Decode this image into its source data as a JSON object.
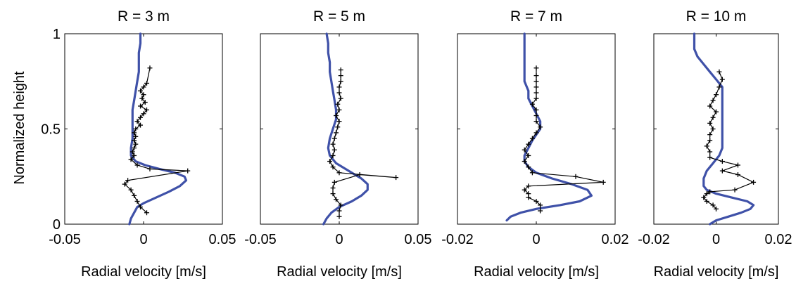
{
  "chart_data": [
    {
      "type": "line",
      "title": "R = 3 m",
      "xlabel": "Radial velocity [m/s]",
      "ylabel": "Normalized height",
      "xlim": [
        -0.05,
        0.05
      ],
      "ylim": [
        0,
        1
      ],
      "xticks": [
        -0.05,
        0,
        0.05
      ],
      "xticklabels": [
        "-0.05",
        "0",
        "0.05"
      ],
      "yticks": [
        0,
        0.5,
        1
      ],
      "yticklabels": [
        "0",
        "0.5",
        "1"
      ],
      "series": [
        {
          "color": "#3f51a8",
          "points": [
            [
              -0.009,
              0.0
            ],
            [
              -0.008,
              0.03
            ],
            [
              -0.006,
              0.06
            ],
            [
              -0.004,
              0.09
            ],
            [
              0.0,
              0.11
            ],
            [
              0.008,
              0.14
            ],
            [
              0.016,
              0.17
            ],
            [
              0.023,
              0.2
            ],
            [
              0.027,
              0.23
            ],
            [
              0.026,
              0.25
            ],
            [
              0.02,
              0.27
            ],
            [
              0.01,
              0.29
            ],
            [
              0.001,
              0.31
            ],
            [
              -0.005,
              0.33
            ],
            [
              -0.008,
              0.36
            ],
            [
              -0.008,
              0.4
            ],
            [
              -0.007,
              0.45
            ],
            [
              -0.007,
              0.5
            ],
            [
              -0.007,
              0.55
            ],
            [
              -0.007,
              0.6
            ],
            [
              -0.006,
              0.65
            ],
            [
              -0.005,
              0.7
            ],
            [
              -0.004,
              0.75
            ],
            [
              -0.003,
              0.8
            ],
            [
              -0.003,
              0.85
            ],
            [
              -0.003,
              0.9
            ],
            [
              -0.002,
              0.95
            ],
            [
              -0.002,
              1.0
            ]
          ]
        },
        {
          "color": "#000000",
          "points": [
            [
              0.002,
              0.06
            ],
            [
              -0.002,
              0.09
            ],
            [
              -0.004,
              0.12
            ],
            [
              -0.006,
              0.15
            ],
            [
              -0.008,
              0.18
            ],
            [
              -0.012,
              0.21
            ],
            [
              -0.01,
              0.23
            ],
            [
              0.028,
              0.28
            ],
            [
              0.004,
              0.29
            ],
            [
              -0.004,
              0.31
            ],
            [
              -0.008,
              0.34
            ],
            [
              -0.006,
              0.36
            ],
            [
              -0.007,
              0.38
            ],
            [
              -0.006,
              0.4
            ],
            [
              -0.005,
              0.42
            ],
            [
              -0.006,
              0.44
            ],
            [
              -0.005,
              0.46
            ],
            [
              -0.006,
              0.48
            ],
            [
              -0.005,
              0.5
            ],
            [
              -0.002,
              0.52
            ],
            [
              -0.004,
              0.54
            ],
            [
              -0.002,
              0.56
            ],
            [
              0.0,
              0.58
            ],
            [
              0.002,
              0.6
            ],
            [
              -0.002,
              0.62
            ],
            [
              0.001,
              0.64
            ],
            [
              -0.001,
              0.66
            ],
            [
              0.0,
              0.68
            ],
            [
              -0.002,
              0.7
            ],
            [
              0.0,
              0.72
            ],
            [
              0.002,
              0.74
            ],
            [
              0.004,
              0.82
            ]
          ]
        }
      ]
    },
    {
      "type": "line",
      "title": "R = 5 m",
      "xlabel": "Radial velocity [m/s]",
      "xlim": [
        -0.05,
        0.05
      ],
      "ylim": [
        0,
        1
      ],
      "xticks": [
        -0.05,
        0,
        0.05
      ],
      "xticklabels": [
        "-0.05",
        "0",
        "0.05"
      ],
      "yticks": [
        0,
        0.5,
        1
      ],
      "yticklabels": [],
      "series": [
        {
          "color": "#3f51a8",
          "points": [
            [
              -0.01,
              0.0
            ],
            [
              -0.008,
              0.03
            ],
            [
              -0.005,
              0.06
            ],
            [
              0.0,
              0.09
            ],
            [
              0.008,
              0.12
            ],
            [
              0.014,
              0.15
            ],
            [
              0.018,
              0.18
            ],
            [
              0.018,
              0.21
            ],
            [
              0.014,
              0.24
            ],
            [
              0.006,
              0.28
            ],
            [
              -0.002,
              0.32
            ],
            [
              -0.006,
              0.36
            ],
            [
              -0.007,
              0.4
            ],
            [
              -0.006,
              0.45
            ],
            [
              -0.004,
              0.5
            ],
            [
              -0.002,
              0.55
            ],
            [
              -0.002,
              0.6
            ],
            [
              -0.003,
              0.65
            ],
            [
              -0.004,
              0.7
            ],
            [
              -0.005,
              0.75
            ],
            [
              -0.006,
              0.8
            ],
            [
              -0.006,
              0.85
            ],
            [
              -0.007,
              0.9
            ],
            [
              -0.007,
              0.95
            ],
            [
              -0.008,
              1.0
            ]
          ]
        },
        {
          "color": "#000000",
          "points": [
            [
              0.0,
              0.04
            ],
            [
              0.0,
              0.07
            ],
            [
              0.001,
              0.1
            ],
            [
              -0.002,
              0.13
            ],
            [
              -0.004,
              0.16
            ],
            [
              -0.004,
              0.19
            ],
            [
              -0.003,
              0.22
            ],
            [
              0.013,
              0.26
            ],
            [
              0.036,
              0.245
            ],
            [
              0.0,
              0.27
            ],
            [
              -0.004,
              0.3
            ],
            [
              -0.006,
              0.33
            ],
            [
              -0.004,
              0.36
            ],
            [
              -0.003,
              0.39
            ],
            [
              -0.004,
              0.42
            ],
            [
              -0.003,
              0.45
            ],
            [
              -0.002,
              0.48
            ],
            [
              -0.001,
              0.51
            ],
            [
              0.0,
              0.54
            ],
            [
              -0.002,
              0.57
            ],
            [
              0.0,
              0.6
            ],
            [
              -0.001,
              0.63
            ],
            [
              0.001,
              0.66
            ],
            [
              0.0,
              0.69
            ],
            [
              0.0,
              0.72
            ],
            [
              0.001,
              0.75
            ],
            [
              0.001,
              0.78
            ],
            [
              0.001,
              0.81
            ]
          ]
        }
      ]
    },
    {
      "type": "line",
      "title": "R = 7 m",
      "xlabel": "Radial velocity [m/s]",
      "xlim": [
        -0.02,
        0.02
      ],
      "ylim": [
        0,
        1
      ],
      "xticks": [
        -0.02,
        0,
        0.02
      ],
      "xticklabels": [
        "-0.02",
        "0",
        "0.02"
      ],
      "yticks": [
        0,
        0.5,
        1
      ],
      "yticklabels": [],
      "series": [
        {
          "color": "#3f51a8",
          "points": [
            [
              -0.0075,
              0.02
            ],
            [
              -0.0065,
              0.04
            ],
            [
              -0.004,
              0.06
            ],
            [
              0.0,
              0.08
            ],
            [
              0.006,
              0.1
            ],
            [
              0.011,
              0.12
            ],
            [
              0.014,
              0.15
            ],
            [
              0.013,
              0.18
            ],
            [
              0.009,
              0.21
            ],
            [
              0.004,
              0.24
            ],
            [
              0.0,
              0.27
            ],
            [
              -0.002,
              0.3
            ],
            [
              -0.003,
              0.33
            ],
            [
              -0.003,
              0.36
            ],
            [
              -0.002,
              0.4
            ],
            [
              -0.001,
              0.44
            ],
            [
              0.0,
              0.47
            ],
            [
              0.001,
              0.5
            ],
            [
              0.001,
              0.54
            ],
            [
              0.0,
              0.58
            ],
            [
              -0.001,
              0.62
            ],
            [
              -0.002,
              0.66
            ],
            [
              -0.002,
              0.7
            ],
            [
              -0.003,
              0.75
            ],
            [
              -0.003,
              0.8
            ],
            [
              -0.003,
              0.85
            ],
            [
              -0.003,
              0.9
            ],
            [
              -0.003,
              0.95
            ],
            [
              -0.003,
              1.0
            ]
          ]
        },
        {
          "color": "#000000",
          "points": [
            [
              0.001,
              0.07
            ],
            [
              0.001,
              0.1
            ],
            [
              0.0,
              0.12
            ],
            [
              -0.002,
              0.14
            ],
            [
              -0.002,
              0.16
            ],
            [
              -0.003,
              0.18
            ],
            [
              -0.002,
              0.2
            ],
            [
              0.017,
              0.22
            ],
            [
              0.01,
              0.25
            ],
            [
              -0.001,
              0.27
            ],
            [
              -0.002,
              0.3
            ],
            [
              -0.003,
              0.33
            ],
            [
              -0.002,
              0.36
            ],
            [
              -0.003,
              0.39
            ],
            [
              -0.002,
              0.42
            ],
            [
              -0.001,
              0.45
            ],
            [
              0.0,
              0.48
            ],
            [
              0.001,
              0.51
            ],
            [
              0.0,
              0.54
            ],
            [
              0.0,
              0.57
            ],
            [
              0.0,
              0.6
            ],
            [
              -0.001,
              0.63
            ],
            [
              0.0,
              0.66
            ],
            [
              0.0,
              0.69
            ],
            [
              0.0,
              0.72
            ],
            [
              0.0,
              0.75
            ],
            [
              0.0,
              0.78
            ],
            [
              0.0,
              0.82
            ]
          ]
        }
      ]
    },
    {
      "type": "line",
      "title": "R = 10 m",
      "xlabel": "Radial velocity [m/s]",
      "xlim": [
        -0.02,
        0.02
      ],
      "ylim": [
        0,
        1
      ],
      "xticks": [
        -0.02,
        0,
        0.02
      ],
      "xticklabels": [
        "-0.02",
        "0",
        "0.02"
      ],
      "yticks": [
        0,
        0.5,
        1
      ],
      "yticklabels": [],
      "series": [
        {
          "color": "#3f51a8",
          "points": [
            [
              -0.002,
              0.0
            ],
            [
              0.0,
              0.02
            ],
            [
              0.004,
              0.04
            ],
            [
              0.008,
              0.06
            ],
            [
              0.011,
              0.08
            ],
            [
              0.012,
              0.1
            ],
            [
              0.01,
              0.12
            ],
            [
              0.005,
              0.14
            ],
            [
              0.0,
              0.16
            ],
            [
              -0.003,
              0.18
            ],
            [
              -0.004,
              0.2
            ],
            [
              -0.004,
              0.24
            ],
            [
              -0.003,
              0.28
            ],
            [
              -0.001,
              0.32
            ],
            [
              0.001,
              0.36
            ],
            [
              0.002,
              0.4
            ],
            [
              0.002,
              0.44
            ],
            [
              0.002,
              0.48
            ],
            [
              0.002,
              0.52
            ],
            [
              0.002,
              0.56
            ],
            [
              0.002,
              0.6
            ],
            [
              0.002,
              0.64
            ],
            [
              0.002,
              0.68
            ],
            [
              0.002,
              0.72
            ],
            [
              0.0,
              0.76
            ],
            [
              -0.002,
              0.8
            ],
            [
              -0.004,
              0.84
            ],
            [
              -0.006,
              0.88
            ],
            [
              -0.007,
              0.92
            ],
            [
              -0.007,
              0.96
            ],
            [
              -0.007,
              1.0
            ]
          ]
        },
        {
          "color": "#000000",
          "points": [
            [
              0.0,
              0.08
            ],
            [
              -0.001,
              0.1
            ],
            [
              -0.003,
              0.12
            ],
            [
              -0.004,
              0.14
            ],
            [
              -0.003,
              0.16
            ],
            [
              -0.002,
              0.17
            ],
            [
              0.006,
              0.18
            ],
            [
              0.012,
              0.22
            ],
            [
              0.007,
              0.26
            ],
            [
              0.002,
              0.28
            ],
            [
              0.007,
              0.31
            ],
            [
              0.002,
              0.33
            ],
            [
              -0.002,
              0.35
            ],
            [
              -0.002,
              0.38
            ],
            [
              -0.003,
              0.41
            ],
            [
              -0.002,
              0.44
            ],
            [
              -0.002,
              0.47
            ],
            [
              -0.001,
              0.5
            ],
            [
              -0.002,
              0.53
            ],
            [
              -0.001,
              0.56
            ],
            [
              0.0,
              0.59
            ],
            [
              -0.002,
              0.62
            ],
            [
              -0.001,
              0.65
            ],
            [
              0.0,
              0.68
            ],
            [
              0.001,
              0.72
            ],
            [
              0.002,
              0.76
            ],
            [
              0.001,
              0.8
            ]
          ]
        }
      ]
    }
  ]
}
